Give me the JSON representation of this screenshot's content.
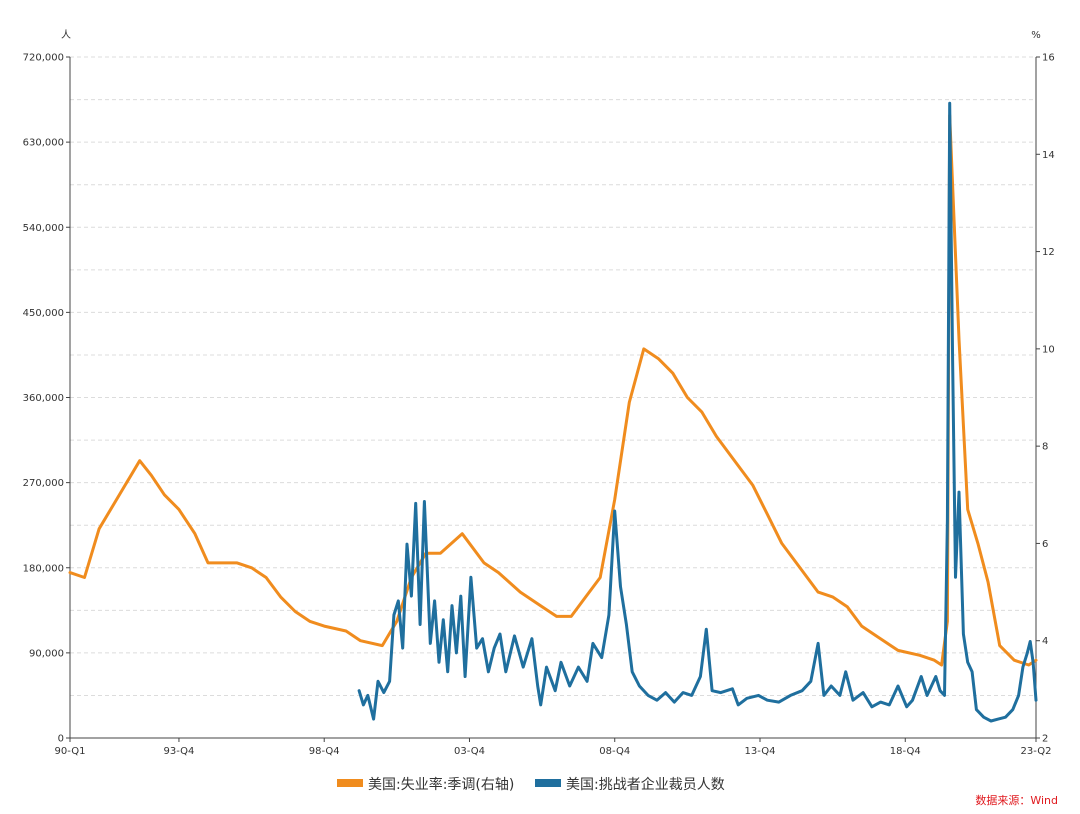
{
  "chart_data": {
    "type": "line",
    "left_axis": {
      "unit": "人",
      "range": [
        0,
        720000
      ],
      "ticks": [
        "0",
        "90,000",
        "180,000",
        "270,000",
        "360,000",
        "450,000",
        "540,000",
        "630,000",
        "720,000"
      ]
    },
    "right_axis": {
      "unit": "%",
      "range": [
        2,
        16
      ],
      "ticks": [
        "2",
        "4",
        "6",
        "8",
        "10",
        "12",
        "14",
        "16"
      ]
    },
    "x_axis": {
      "range": [
        "1990-Q1",
        "2023-Q2"
      ],
      "tick_labels": [
        "90-Q1",
        "93-Q4",
        "98-Q4",
        "03-Q4",
        "08-Q4",
        "13-Q4",
        "18-Q4",
        "23-Q2"
      ],
      "tick_positions": [
        1990.0,
        1993.75,
        1998.75,
        2003.75,
        2008.75,
        2013.75,
        2018.75,
        2023.25
      ]
    },
    "grid": "horizontal dashed",
    "legend_position": "bottom-center",
    "series": [
      {
        "name": "美国:失业率:季调(右轴)",
        "axis": "right",
        "color": "#f08c1e",
        "points": [
          [
            1990.0,
            5.4
          ],
          [
            1990.5,
            5.3
          ],
          [
            1991.0,
            6.3
          ],
          [
            1991.5,
            6.8
          ],
          [
            1992.0,
            7.3
          ],
          [
            1992.4,
            7.7
          ],
          [
            1992.8,
            7.4
          ],
          [
            1993.25,
            7.0
          ],
          [
            1993.75,
            6.7
          ],
          [
            1994.3,
            6.2
          ],
          [
            1994.75,
            5.6
          ],
          [
            1995.25,
            5.6
          ],
          [
            1995.75,
            5.6
          ],
          [
            1996.25,
            5.5
          ],
          [
            1996.75,
            5.3
          ],
          [
            1997.25,
            4.9
          ],
          [
            1997.75,
            4.6
          ],
          [
            1998.25,
            4.4
          ],
          [
            1998.75,
            4.3
          ],
          [
            1999.5,
            4.2
          ],
          [
            2000.0,
            4.0
          ],
          [
            2000.75,
            3.9
          ],
          [
            2001.25,
            4.4
          ],
          [
            2001.75,
            5.3
          ],
          [
            2002.25,
            5.8
          ],
          [
            2002.75,
            5.8
          ],
          [
            2003.5,
            6.2
          ],
          [
            2004.25,
            5.6
          ],
          [
            2004.75,
            5.4
          ],
          [
            2005.5,
            5.0
          ],
          [
            2006.25,
            4.7
          ],
          [
            2006.75,
            4.5
          ],
          [
            2007.25,
            4.5
          ],
          [
            2007.75,
            4.9
          ],
          [
            2008.25,
            5.3
          ],
          [
            2008.75,
            6.9
          ],
          [
            2009.25,
            8.9
          ],
          [
            2009.75,
            10.0
          ],
          [
            2010.25,
            9.8
          ],
          [
            2010.75,
            9.5
          ],
          [
            2011.25,
            9.0
          ],
          [
            2011.75,
            8.7
          ],
          [
            2012.25,
            8.2
          ],
          [
            2012.75,
            7.8
          ],
          [
            2013.5,
            7.2
          ],
          [
            2014.0,
            6.6
          ],
          [
            2014.5,
            6.0
          ],
          [
            2015.25,
            5.4
          ],
          [
            2015.75,
            5.0
          ],
          [
            2016.25,
            4.9
          ],
          [
            2016.75,
            4.7
          ],
          [
            2017.25,
            4.3
          ],
          [
            2017.75,
            4.1
          ],
          [
            2018.5,
            3.8
          ],
          [
            2019.25,
            3.7
          ],
          [
            2019.75,
            3.6
          ],
          [
            2020.0,
            3.5
          ],
          [
            2020.2,
            4.4
          ],
          [
            2020.28,
            14.8
          ],
          [
            2020.6,
            10.2
          ],
          [
            2020.9,
            6.7
          ],
          [
            2021.25,
            6.0
          ],
          [
            2021.6,
            5.2
          ],
          [
            2022.0,
            3.9
          ],
          [
            2022.5,
            3.6
          ],
          [
            2023.0,
            3.5
          ],
          [
            2023.25,
            3.6
          ]
        ]
      },
      {
        "name": "美国:挑战者企业裁员人数",
        "axis": "left",
        "color": "#1f6f9e",
        "points": [
          [
            1999.95,
            50000
          ],
          [
            2000.1,
            35000
          ],
          [
            2000.25,
            45000
          ],
          [
            2000.45,
            20000
          ],
          [
            2000.6,
            60000
          ],
          [
            2000.8,
            48000
          ],
          [
            2001.0,
            60000
          ],
          [
            2001.15,
            130000
          ],
          [
            2001.3,
            145000
          ],
          [
            2001.45,
            95000
          ],
          [
            2001.6,
            205000
          ],
          [
            2001.75,
            150000
          ],
          [
            2001.9,
            248000
          ],
          [
            2002.05,
            120000
          ],
          [
            2002.2,
            250000
          ],
          [
            2002.4,
            100000
          ],
          [
            2002.55,
            145000
          ],
          [
            2002.7,
            80000
          ],
          [
            2002.85,
            125000
          ],
          [
            2003.0,
            70000
          ],
          [
            2003.15,
            140000
          ],
          [
            2003.3,
            90000
          ],
          [
            2003.45,
            150000
          ],
          [
            2003.6,
            65000
          ],
          [
            2003.8,
            170000
          ],
          [
            2004.0,
            95000
          ],
          [
            2004.2,
            105000
          ],
          [
            2004.4,
            70000
          ],
          [
            2004.6,
            95000
          ],
          [
            2004.8,
            110000
          ],
          [
            2005.0,
            70000
          ],
          [
            2005.3,
            108000
          ],
          [
            2005.6,
            75000
          ],
          [
            2005.9,
            105000
          ],
          [
            2006.1,
            55000
          ],
          [
            2006.2,
            35000
          ],
          [
            2006.4,
            75000
          ],
          [
            2006.7,
            50000
          ],
          [
            2006.9,
            80000
          ],
          [
            2007.2,
            55000
          ],
          [
            2007.5,
            75000
          ],
          [
            2007.8,
            60000
          ],
          [
            2008.0,
            100000
          ],
          [
            2008.3,
            85000
          ],
          [
            2008.55,
            130000
          ],
          [
            2008.75,
            240000
          ],
          [
            2008.95,
            160000
          ],
          [
            2009.15,
            120000
          ],
          [
            2009.35,
            70000
          ],
          [
            2009.6,
            55000
          ],
          [
            2009.9,
            45000
          ],
          [
            2010.2,
            40000
          ],
          [
            2010.5,
            48000
          ],
          [
            2010.8,
            38000
          ],
          [
            2011.1,
            48000
          ],
          [
            2011.4,
            45000
          ],
          [
            2011.7,
            65000
          ],
          [
            2011.9,
            115000
          ],
          [
            2012.1,
            50000
          ],
          [
            2012.4,
            48000
          ],
          [
            2012.8,
            52000
          ],
          [
            2013.0,
            35000
          ],
          [
            2013.3,
            42000
          ],
          [
            2013.7,
            45000
          ],
          [
            2014.0,
            40000
          ],
          [
            2014.4,
            38000
          ],
          [
            2014.8,
            45000
          ],
          [
            2015.2,
            50000
          ],
          [
            2015.5,
            60000
          ],
          [
            2015.75,
            100000
          ],
          [
            2015.95,
            45000
          ],
          [
            2016.2,
            55000
          ],
          [
            2016.5,
            45000
          ],
          [
            2016.7,
            70000
          ],
          [
            2016.95,
            40000
          ],
          [
            2017.3,
            48000
          ],
          [
            2017.6,
            33000
          ],
          [
            2017.9,
            38000
          ],
          [
            2018.2,
            35000
          ],
          [
            2018.5,
            55000
          ],
          [
            2018.8,
            33000
          ],
          [
            2019.0,
            40000
          ],
          [
            2019.3,
            65000
          ],
          [
            2019.5,
            45000
          ],
          [
            2019.8,
            65000
          ],
          [
            2019.95,
            50000
          ],
          [
            2020.1,
            45000
          ],
          [
            2020.2,
            230000
          ],
          [
            2020.28,
            671000
          ],
          [
            2020.38,
            400000
          ],
          [
            2020.48,
            170000
          ],
          [
            2020.6,
            260000
          ],
          [
            2020.75,
            110000
          ],
          [
            2020.9,
            80000
          ],
          [
            2021.05,
            70000
          ],
          [
            2021.2,
            30000
          ],
          [
            2021.45,
            22000
          ],
          [
            2021.7,
            18000
          ],
          [
            2021.95,
            20000
          ],
          [
            2022.2,
            22000
          ],
          [
            2022.45,
            30000
          ],
          [
            2022.65,
            45000
          ],
          [
            2022.8,
            75000
          ],
          [
            2022.95,
            90000
          ],
          [
            2023.05,
            102000
          ],
          [
            2023.15,
            80000
          ],
          [
            2023.25,
            40000
          ]
        ]
      }
    ]
  },
  "source": "数据来源：Wind"
}
